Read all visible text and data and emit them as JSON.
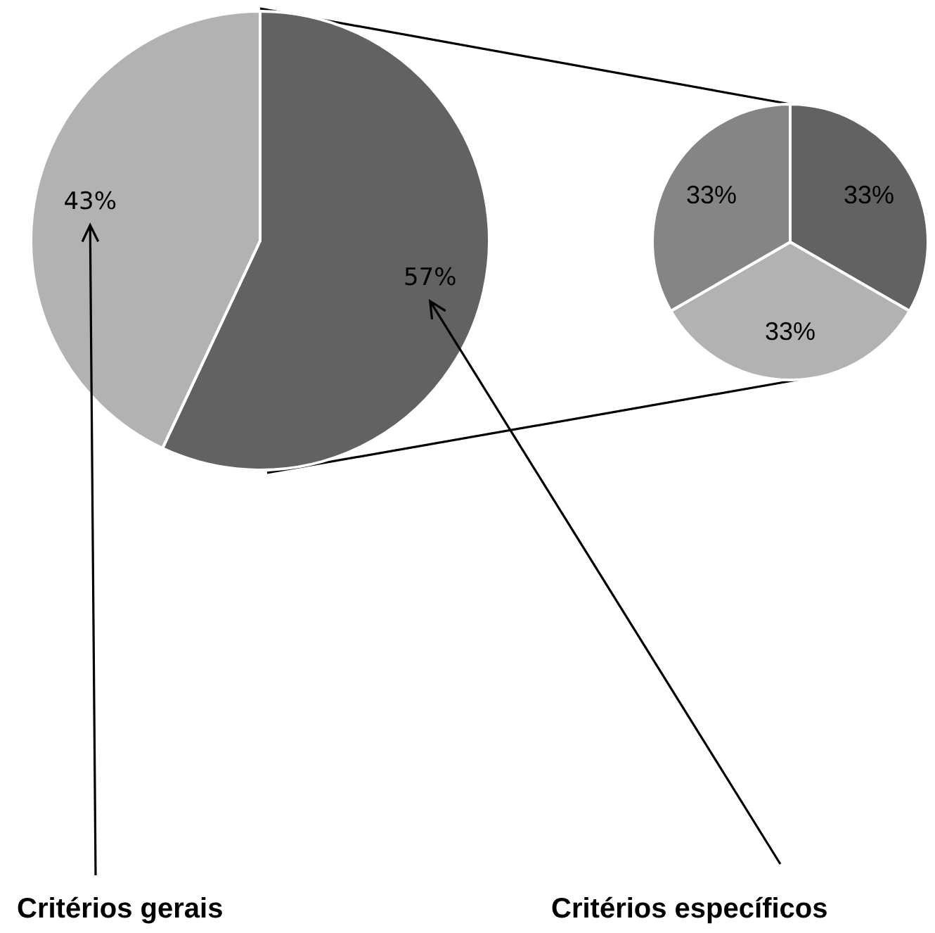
{
  "chart_data": [
    {
      "type": "pie",
      "categories": [
        "Critérios específicos",
        "Critérios gerais"
      ],
      "values": [
        57,
        43
      ],
      "colors": [
        "#626262",
        "#b2b2b2"
      ],
      "value_labels": [
        "57%",
        "43%"
      ]
    },
    {
      "type": "pie",
      "categories": [
        null,
        null,
        null
      ],
      "values": [
        33,
        33,
        33
      ],
      "colors": [
        "#626262",
        "#b2b2b2",
        "#858585"
      ],
      "value_labels": [
        "33%",
        "33%",
        "33%"
      ]
    }
  ]
}
